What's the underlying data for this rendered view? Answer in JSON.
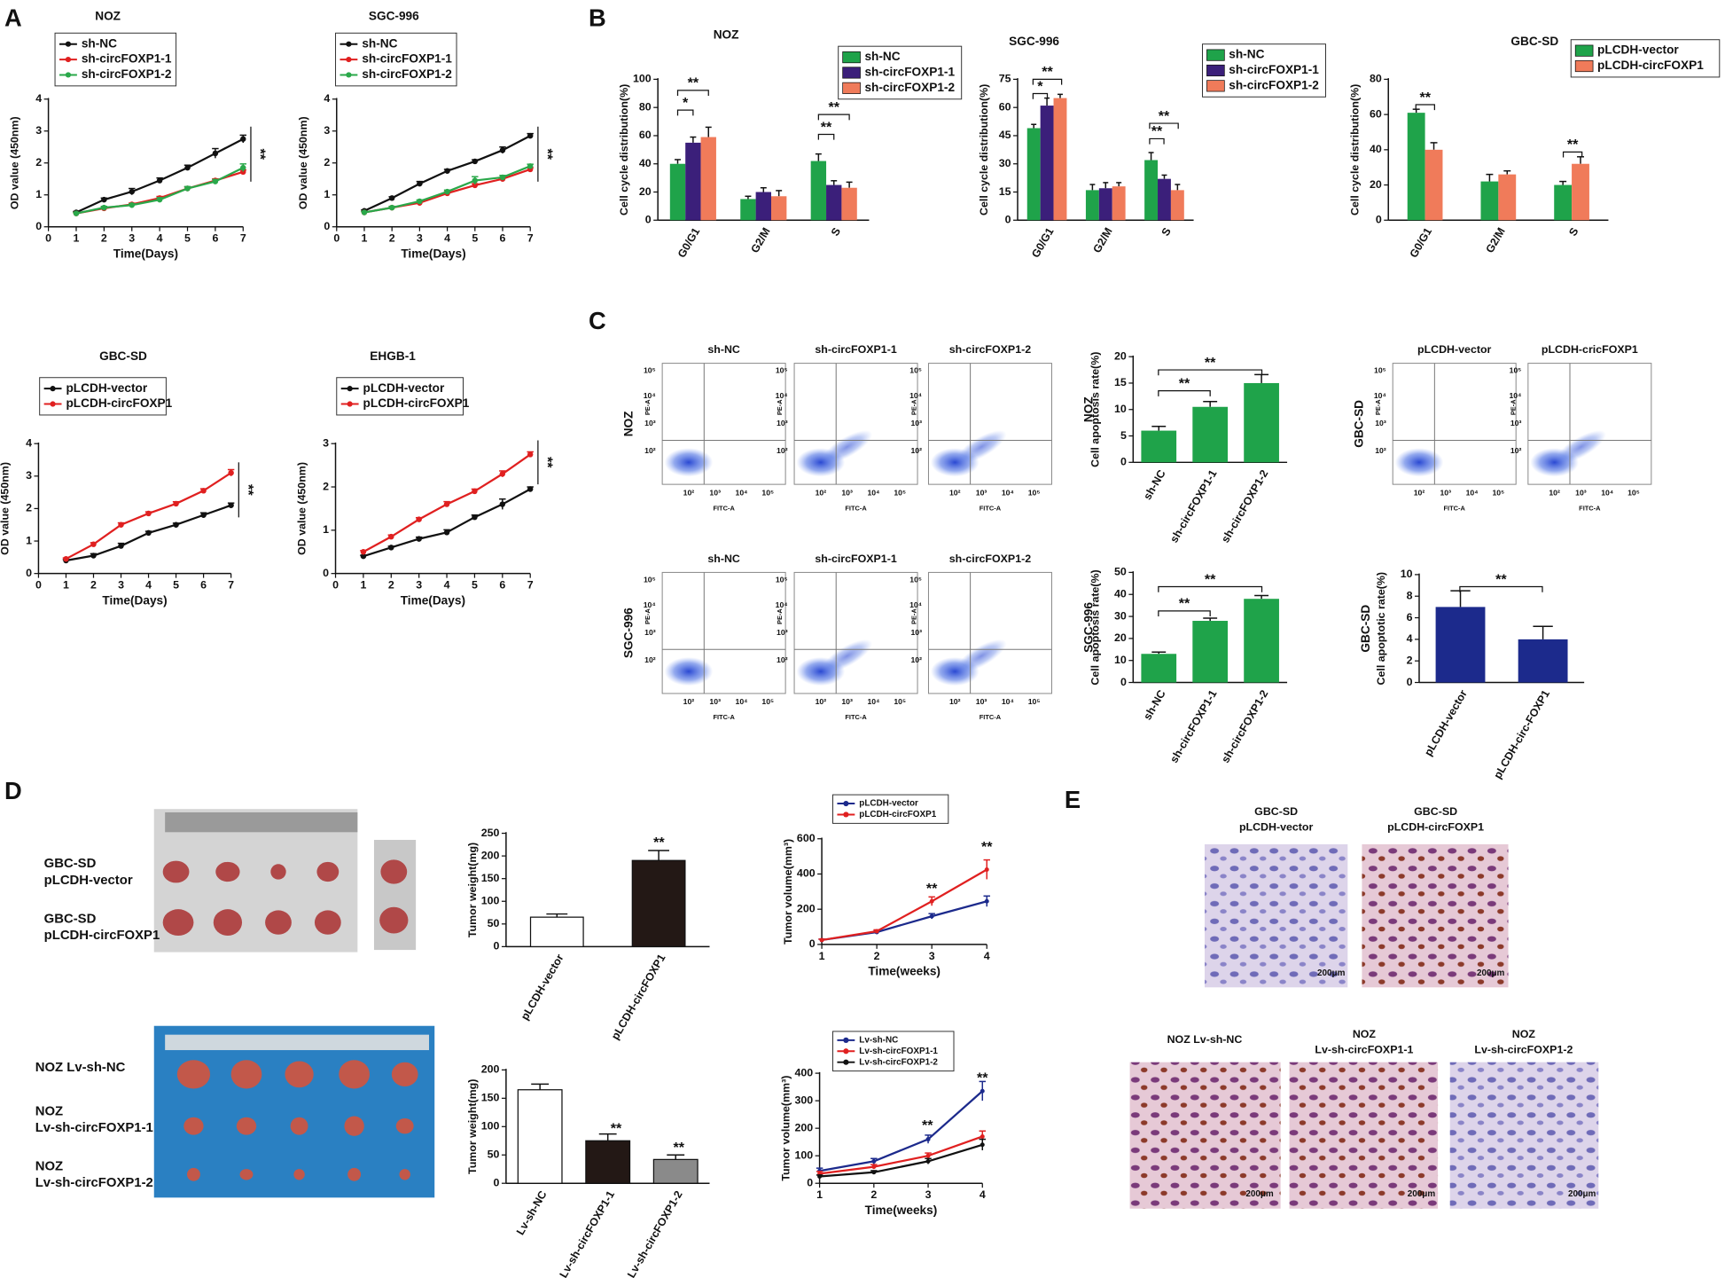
{
  "panels": [
    "A",
    "B",
    "C",
    "D",
    "E"
  ],
  "flow": {
    "col_titles": [
      "sh-NC",
      "sh-circFOXP1-1",
      "sh-circFOXP1-2"
    ],
    "rows": [
      "NOZ",
      "SGC-996"
    ],
    "gbc_titles": [
      "pLCDH-vector",
      "pLCDH-cricFOXP1"
    ],
    "gbc_row": "GBC-SD",
    "x_label": "FITC-A",
    "y_label": "PE-A",
    "ticks": [
      "10²",
      "10³",
      "10⁴",
      "10⁵"
    ]
  },
  "photos": {
    "top": [
      [
        "GBC-SD",
        "pLCDH-vector"
      ],
      [
        "GBC-SD",
        "pLCDH-circFOXP1"
      ]
    ],
    "bottom": [
      [
        "NOZ Lv-sh-NC"
      ],
      [
        "NOZ",
        "Lv-sh-circFOXP1-1"
      ],
      [
        "NOZ",
        "Lv-sh-circFOXP1-2"
      ]
    ]
  },
  "ihc": {
    "labels": [
      [
        "GBC-SD",
        "pLCDH-vector"
      ],
      [
        "GBC-SD",
        "pLCDH-circFOXP1"
      ],
      [
        "NOZ Lv-sh-NC"
      ],
      [
        "NOZ",
        "Lv-sh-circFOXP1-1"
      ],
      [
        "NOZ",
        "Lv-sh-circFOXP1-2"
      ]
    ],
    "scale": "200μm"
  },
  "chart_data": [
    {
      "type": "line",
      "title": "NOZ",
      "xlabel": "Time(Days)",
      "ylabel": "OD value (450nm)",
      "x": [
        1,
        2,
        3,
        4,
        5,
        6,
        7
      ],
      "xlim": [
        0,
        7
      ],
      "xticks": [
        0,
        1,
        2,
        3,
        4,
        5,
        6,
        7
      ],
      "ylim": [
        0,
        4
      ],
      "yticks": [
        0,
        1,
        2,
        3,
        4
      ],
      "series": [
        {
          "name": "sh-NC",
          "color": "#111111",
          "values": [
            0.45,
            0.85,
            1.1,
            1.45,
            1.85,
            2.3,
            2.75
          ],
          "errors": [
            0.03,
            0.05,
            0.1,
            0.08,
            0.08,
            0.15,
            0.12
          ]
        },
        {
          "name": "sh-circFOXP1-1",
          "color": "#e02020",
          "values": [
            0.42,
            0.58,
            0.7,
            0.9,
            1.2,
            1.45,
            1.72
          ],
          "errors": [
            0.03,
            0.04,
            0.04,
            0.05,
            0.05,
            0.05,
            0.06
          ]
        },
        {
          "name": "sh-circFOXP1-2",
          "color": "#2aa84a",
          "values": [
            0.42,
            0.6,
            0.68,
            0.85,
            1.2,
            1.42,
            1.85
          ],
          "errors": [
            0.03,
            0.04,
            0.04,
            0.06,
            0.06,
            0.06,
            0.12
          ]
        }
      ],
      "annotations": [
        "**"
      ]
    },
    {
      "type": "line",
      "title": "SGC-996",
      "xlabel": "Time(Days)",
      "ylabel": "OD value (450nm)",
      "x": [
        1,
        2,
        3,
        4,
        5,
        6,
        7
      ],
      "xlim": [
        0,
        7
      ],
      "xticks": [
        0,
        1,
        2,
        3,
        4,
        5,
        6,
        7
      ],
      "ylim": [
        0,
        4
      ],
      "yticks": [
        0,
        1,
        2,
        3,
        4
      ],
      "series": [
        {
          "name": "sh-NC",
          "color": "#111111",
          "values": [
            0.5,
            0.9,
            1.35,
            1.75,
            2.05,
            2.4,
            2.85
          ],
          "errors": [
            0.03,
            0.04,
            0.07,
            0.05,
            0.05,
            0.1,
            0.07
          ]
        },
        {
          "name": "sh-circFOXP1-1",
          "color": "#e02020",
          "values": [
            0.45,
            0.6,
            0.75,
            1.05,
            1.3,
            1.5,
            1.8
          ],
          "errors": [
            0.03,
            0.04,
            0.04,
            0.05,
            0.05,
            0.05,
            0.05
          ]
        },
        {
          "name": "sh-circFOXP1-2",
          "color": "#2aa84a",
          "values": [
            0.45,
            0.6,
            0.8,
            1.1,
            1.45,
            1.55,
            1.9
          ],
          "errors": [
            0.03,
            0.04,
            0.04,
            0.05,
            0.12,
            0.06,
            0.06
          ]
        }
      ],
      "annotations": [
        "**"
      ]
    },
    {
      "type": "line",
      "title": "GBC-SD",
      "xlabel": "Time(Days)",
      "ylabel": "OD value (450nm)",
      "x": [
        1,
        2,
        3,
        4,
        5,
        6,
        7
      ],
      "xlim": [
        0,
        7
      ],
      "xticks": [
        0,
        1,
        2,
        3,
        4,
        5,
        6,
        7
      ],
      "ylim": [
        0,
        4
      ],
      "yticks": [
        0,
        1,
        2,
        3,
        4
      ],
      "series": [
        {
          "name": "pLCDH-vector",
          "color": "#111111",
          "values": [
            0.4,
            0.55,
            0.85,
            1.25,
            1.5,
            1.8,
            2.1
          ],
          "errors": [
            0.03,
            0.06,
            0.08,
            0.05,
            0.05,
            0.07,
            0.07
          ]
        },
        {
          "name": "pLCDH-circFOXP1",
          "color": "#e02020",
          "values": [
            0.45,
            0.9,
            1.5,
            1.85,
            2.15,
            2.55,
            3.1
          ],
          "errors": [
            0.03,
            0.05,
            0.06,
            0.05,
            0.06,
            0.06,
            0.1
          ]
        }
      ],
      "annotations": [
        "**"
      ]
    },
    {
      "type": "line",
      "title": "EHGB-1",
      "xlabel": "Time(Days)",
      "ylabel": "OD value (450nm)",
      "x": [
        1,
        2,
        3,
        4,
        5,
        6,
        7
      ],
      "xlim": [
        0,
        7
      ],
      "xticks": [
        0,
        1,
        2,
        3,
        4,
        5,
        6,
        7
      ],
      "ylim": [
        0,
        3
      ],
      "yticks": [
        0,
        1,
        2,
        3
      ],
      "series": [
        {
          "name": "pLCDH-vector",
          "color": "#111111",
          "values": [
            0.4,
            0.6,
            0.8,
            0.95,
            1.3,
            1.6,
            1.95
          ],
          "errors": [
            0.02,
            0.03,
            0.04,
            0.06,
            0.05,
            0.12,
            0.05
          ]
        },
        {
          "name": "pLCDH-circFOXP1",
          "color": "#e02020",
          "values": [
            0.5,
            0.85,
            1.25,
            1.6,
            1.9,
            2.3,
            2.75
          ],
          "errors": [
            0.03,
            0.04,
            0.04,
            0.06,
            0.05,
            0.07,
            0.06
          ]
        }
      ],
      "annotations": [
        "**"
      ]
    },
    {
      "type": "bar",
      "title": "NOZ",
      "ylabel": "Cell cycle distribution(%)",
      "categories": [
        "G0/G1",
        "G2/M",
        "S"
      ],
      "ylim": [
        0,
        100
      ],
      "yticks": [
        0,
        20,
        40,
        60,
        80,
        100
      ],
      "series": [
        {
          "name": "sh-NC",
          "color": "#1fa34a",
          "values": [
            40,
            15,
            42
          ],
          "errors": [
            3,
            2,
            5
          ]
        },
        {
          "name": "sh-circFOXP1-1",
          "color": "#3b1f7a",
          "values": [
            55,
            20,
            25
          ],
          "errors": [
            4,
            3,
            3
          ]
        },
        {
          "name": "sh-circFOXP1-2",
          "color": "#f07b5a",
          "values": [
            59,
            17,
            23
          ],
          "errors": [
            7,
            4,
            4
          ]
        }
      ],
      "annotations": [
        "*",
        "**",
        "**",
        "**"
      ]
    },
    {
      "type": "bar",
      "title": "SGC-996",
      "ylabel": "Cell cycle distribution(%)",
      "categories": [
        "G0/G1",
        "G2/M",
        "S"
      ],
      "ylim": [
        0,
        75
      ],
      "yticks": [
        0,
        15,
        30,
        45,
        60,
        75
      ],
      "series": [
        {
          "name": "sh-NC",
          "color": "#1fa34a",
          "values": [
            49,
            16,
            32
          ],
          "errors": [
            2,
            3,
            4
          ]
        },
        {
          "name": "sh-circFOXP1-1",
          "color": "#3b1f7a",
          "values": [
            61,
            17,
            22
          ],
          "errors": [
            4,
            3,
            2
          ]
        },
        {
          "name": "sh-circFOXP1-2",
          "color": "#f07b5a",
          "values": [
            65,
            18,
            16
          ],
          "errors": [
            2,
            2,
            3
          ]
        }
      ],
      "annotations": [
        "*",
        "**",
        "**",
        "**"
      ]
    },
    {
      "type": "bar",
      "title": "GBC-SD",
      "ylabel": "Cell cycle distribution(%)",
      "categories": [
        "G0/G1",
        "G2/M",
        "S"
      ],
      "ylim": [
        0,
        80
      ],
      "yticks": [
        0,
        20,
        40,
        60,
        80
      ],
      "series": [
        {
          "name": "pLCDH-vector",
          "color": "#1fa34a",
          "values": [
            61,
            22,
            20
          ],
          "errors": [
            2,
            4,
            2
          ]
        },
        {
          "name": "pLCDH-circFOXP1",
          "color": "#f07b5a",
          "values": [
            40,
            26,
            32
          ],
          "errors": [
            4,
            2,
            4
          ]
        }
      ],
      "annotations": [
        "**",
        "**"
      ]
    },
    {
      "type": "bar",
      "side_label": "NOZ",
      "ylabel": "Cell apoptosis rate(%)",
      "categories": [
        "sh-NC",
        "sh-circFOXP1-1",
        "sh-circFOXP1-2"
      ],
      "values": [
        6,
        10.5,
        15
      ],
      "errors": [
        0.8,
        1.0,
        1.6
      ],
      "color": "#1fa34a",
      "ylim": [
        0,
        20
      ],
      "yticks": [
        0,
        5,
        10,
        15,
        20
      ],
      "annotations": [
        "**",
        "**"
      ]
    },
    {
      "type": "bar",
      "side_label": "SGC-996",
      "ylabel": "Cell apoptosis rate(%)",
      "categories": [
        "sh-NC",
        "sh-circFOXP1-1",
        "sh-circFOXP1-2"
      ],
      "values": [
        13,
        28,
        38
      ],
      "errors": [
        0.8,
        1.2,
        1.5
      ],
      "color": "#1fa34a",
      "ylim": [
        0,
        50
      ],
      "yticks": [
        0,
        10,
        20,
        30,
        40,
        50
      ],
      "annotations": [
        "**",
        "**"
      ]
    },
    {
      "type": "bar",
      "side_label": "GBC-SD",
      "ylabel": "Cell apoptotic rate(%)",
      "categories": [
        "pLCDH-vector",
        "pLCDH-circ-FOXP1"
      ],
      "values": [
        7,
        4
      ],
      "errors": [
        1.5,
        1.2
      ],
      "color": "#1c2a8c",
      "ylim": [
        0,
        10
      ],
      "yticks": [
        0,
        2,
        4,
        6,
        8,
        10
      ],
      "annotations": [
        "**"
      ]
    },
    {
      "type": "bar",
      "ylabel": "Tumor weight(mg)",
      "categories": [
        "pLCDH-vector",
        "pLCDH-circFOXP1"
      ],
      "values": [
        65,
        190
      ],
      "errors": [
        7,
        22
      ],
      "colors": [
        "#ffffff",
        "#231815"
      ],
      "ylim": [
        0,
        250
      ],
      "yticks": [
        0,
        50,
        100,
        150,
        200,
        250
      ],
      "annotations": [
        "**"
      ]
    },
    {
      "type": "line",
      "xlabel": "Time(weeks)",
      "ylabel": "Tumor volume(mm³)",
      "x": [
        1,
        2,
        3,
        4
      ],
      "xlim": [
        1,
        4
      ],
      "xticks": [
        1,
        2,
        3,
        4
      ],
      "ylim": [
        0,
        600
      ],
      "yticks": [
        0,
        200,
        400,
        600
      ],
      "series": [
        {
          "name": "pLCDH-vector",
          "color": "#1c2a8c",
          "values": [
            25,
            70,
            160,
            245
          ],
          "errors": [
            5,
            8,
            15,
            30
          ]
        },
        {
          "name": "pLCDH-circFOXP1",
          "color": "#e02020",
          "values": [
            25,
            75,
            245,
            425
          ],
          "errors": [
            5,
            8,
            25,
            55
          ]
        }
      ],
      "annotations": [
        "**",
        "**"
      ]
    },
    {
      "type": "bar",
      "ylabel": "Tumor weight(mg)",
      "categories": [
        "Lv-sh-NC",
        "Lv-sh-circFOXP1-1",
        "Lv-sh-circFOXP1-2"
      ],
      "values": [
        165,
        75,
        42
      ],
      "errors": [
        10,
        12,
        8
      ],
      "colors": [
        "#ffffff",
        "#231815",
        "#8a8a8a"
      ],
      "ylim": [
        0,
        200
      ],
      "yticks": [
        0,
        50,
        100,
        150,
        200
      ],
      "annotations": [
        "**",
        "**"
      ]
    },
    {
      "type": "line",
      "xlabel": "Time(weeks)",
      "ylabel": "Tumor volume(mm³)",
      "x": [
        1,
        2,
        3,
        4
      ],
      "xlim": [
        1,
        4
      ],
      "xticks": [
        1,
        2,
        3,
        4
      ],
      "ylim": [
        0,
        400
      ],
      "yticks": [
        0,
        100,
        200,
        300,
        400
      ],
      "series": [
        {
          "name": "Lv-sh-NC",
          "color": "#1c2a8c",
          "values": [
            45,
            80,
            160,
            335
          ],
          "errors": [
            10,
            10,
            15,
            35
          ]
        },
        {
          "name": "Lv-sh-circFOXP1-1",
          "color": "#e02020",
          "values": [
            35,
            60,
            100,
            170
          ],
          "errors": [
            8,
            8,
            10,
            20
          ]
        },
        {
          "name": "Lv-sh-circFOXP1-2",
          "color": "#111111",
          "values": [
            25,
            40,
            80,
            140
          ],
          "errors": [
            5,
            6,
            10,
            20
          ]
        }
      ],
      "annotations": [
        "**",
        "**"
      ]
    }
  ]
}
